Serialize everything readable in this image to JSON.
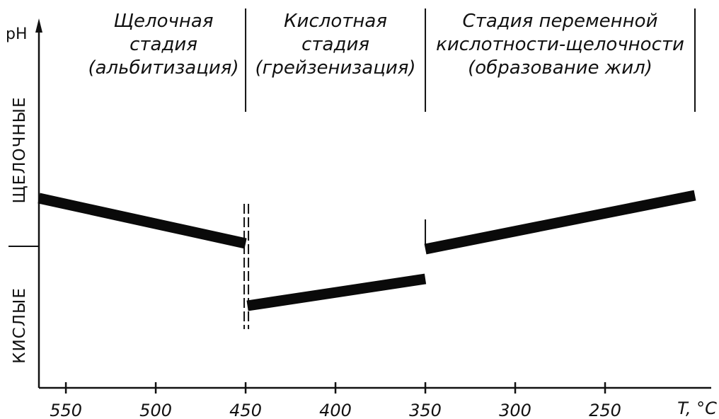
{
  "chart_data": {
    "type": "line",
    "ylabel": "pH",
    "xlabel": "T, °C",
    "x_ticks": [
      550,
      500,
      450,
      400,
      350,
      300,
      250
    ],
    "xlim": [
      565,
      200
    ],
    "ylim": [
      -1,
      1
    ],
    "y_regions": {
      "upper": "ЩЕЛОЧНЫЕ",
      "lower": "КИСЛЫЕ"
    },
    "stage_boundaries": [
      450,
      350,
      200
    ],
    "stages": [
      {
        "lines": [
          "Щелочная",
          "стадия",
          "(альбитизация)"
        ],
        "x_from": 565,
        "x_to": 450
      },
      {
        "lines": [
          "Кислотная",
          "стадия",
          "(грейзенизация)"
        ],
        "x_from": 450,
        "x_to": 350
      },
      {
        "lines": [
          "Стадия переменной",
          "кислотности-щелочности",
          "(образование жил)"
        ],
        "x_from": 350,
        "x_to": 200
      }
    ],
    "series": [
      {
        "x": [
          565,
          450
        ],
        "y": [
          0.34,
          0.02
        ]
      },
      {
        "x": [
          449,
          350
        ],
        "y": [
          -0.42,
          -0.23
        ]
      },
      {
        "x": [
          350,
          200
        ],
        "y": [
          -0.02,
          0.36
        ]
      }
    ]
  }
}
